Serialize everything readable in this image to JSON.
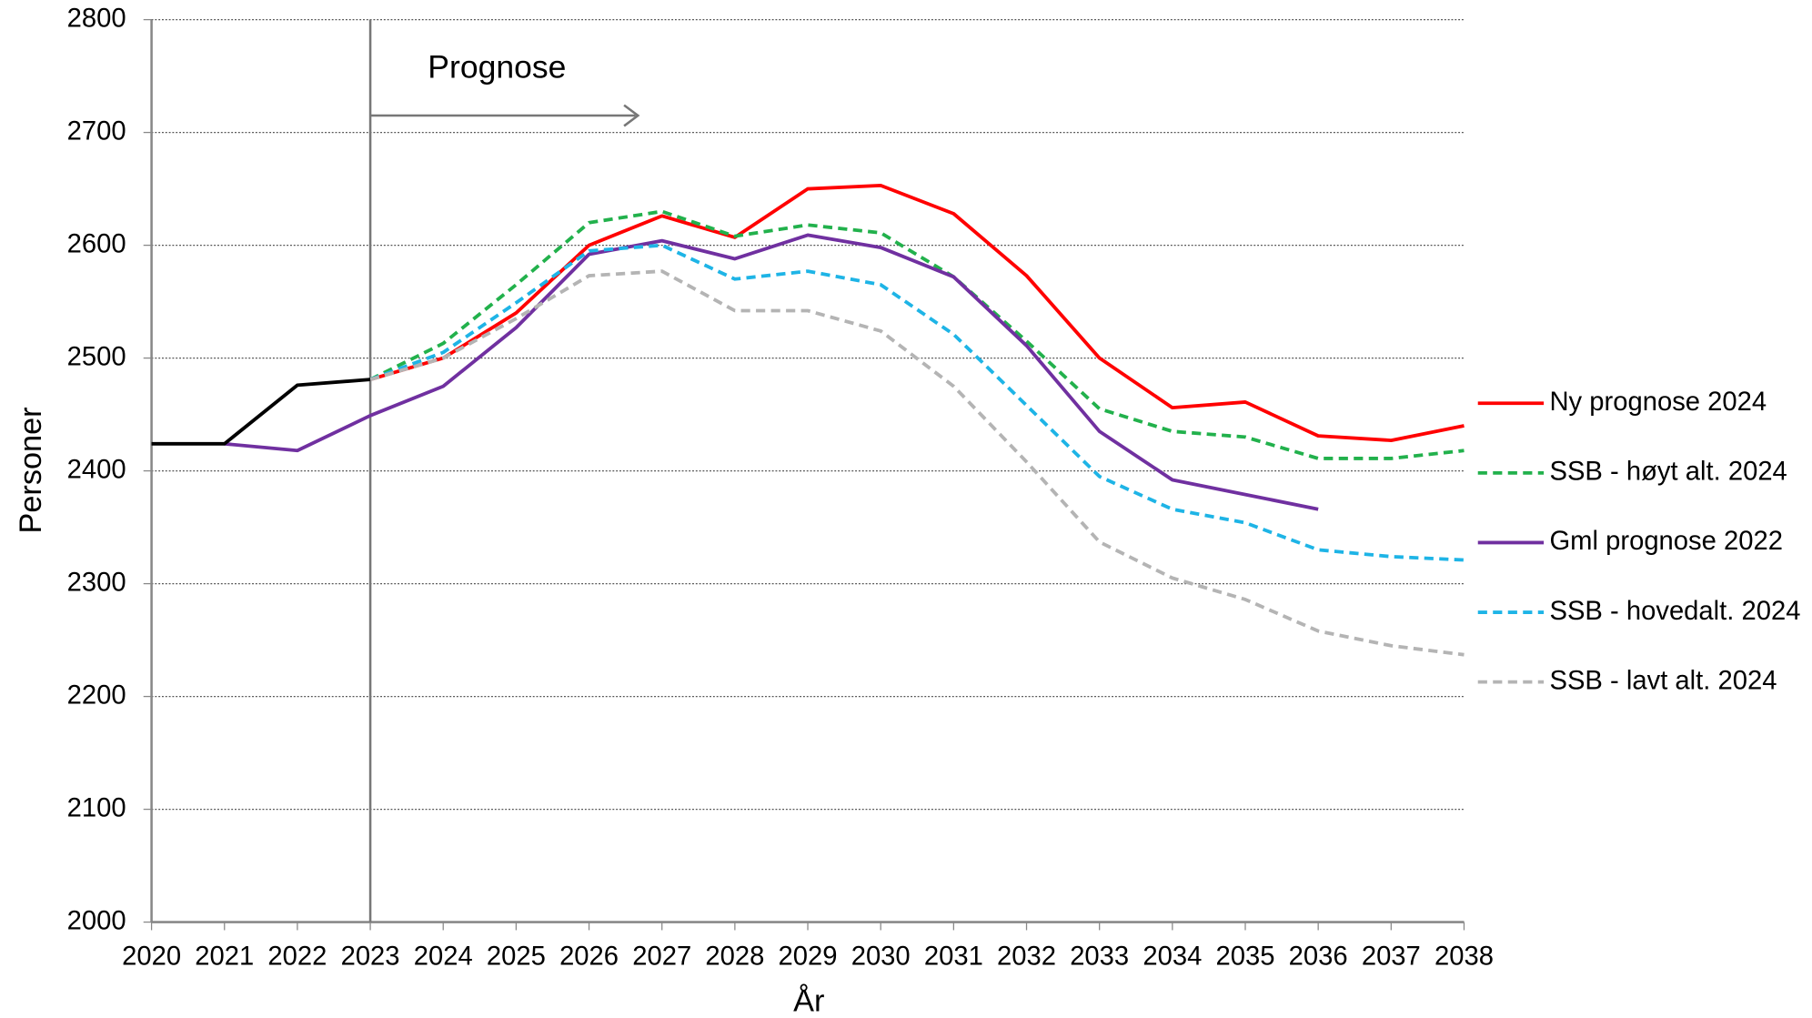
{
  "chart_data": {
    "type": "line",
    "x_label": "År",
    "y_label": "Personer",
    "annotation": "Prognose",
    "vline": 2023,
    "x": [
      2020,
      2021,
      2022,
      2023,
      2024,
      2025,
      2026,
      2027,
      2028,
      2029,
      2030,
      2031,
      2032,
      2033,
      2034,
      2035,
      2036,
      2037,
      2038
    ],
    "xlim": [
      2020,
      2038
    ],
    "xticks": [
      2020,
      2021,
      2022,
      2023,
      2024,
      2025,
      2026,
      2027,
      2028,
      2029,
      2030,
      2031,
      2032,
      2033,
      2034,
      2035,
      2036,
      2037,
      2038
    ],
    "ylim": [
      2000,
      2800
    ],
    "yticks": [
      2000,
      2100,
      2200,
      2300,
      2400,
      2500,
      2600,
      2700,
      2800
    ],
    "grid": true,
    "legend": "right",
    "series": [
      {
        "name": "Ny prognose 2024",
        "color": "#ff0000",
        "dashed": false,
        "values": [
          null,
          null,
          null,
          2481,
          2500,
          2540,
          2600,
          2626,
          2607,
          2650,
          2653,
          2628,
          2573,
          2500,
          2456,
          2461,
          2431,
          2427,
          2440
        ]
      },
      {
        "name": "SSB - høyt alt. 2024",
        "color": "#22b14c",
        "dashed": true,
        "values": [
          null,
          null,
          null,
          2481,
          2513,
          2565,
          2620,
          2630,
          2608,
          2618,
          2611,
          2572,
          2515,
          2455,
          2435,
          2430,
          2411,
          2411,
          2418
        ]
      },
      {
        "name": "Gml prognose 2022",
        "color": "#7030a0",
        "dashed": false,
        "values": [
          null,
          2424,
          2418,
          2449,
          2475,
          2527,
          2592,
          2604,
          2588,
          2609,
          2598,
          2572,
          2511,
          2435,
          2392,
          2379,
          2366,
          null,
          null
        ]
      },
      {
        "name": "SSB - hovedalt. 2024",
        "color": "#1eb4e6",
        "dashed": true,
        "values": [
          null,
          null,
          null,
          2481,
          2505,
          2549,
          2595,
          2600,
          2570,
          2577,
          2565,
          2521,
          2458,
          2395,
          2366,
          2354,
          2330,
          2324,
          2321
        ]
      },
      {
        "name": "SSB - lavt alt. 2024",
        "color": "#b4b4b4",
        "dashed": true,
        "values": [
          null,
          null,
          null,
          2481,
          2500,
          2535,
          2573,
          2577,
          2542,
          2542,
          2524,
          2475,
          2408,
          2337,
          2305,
          2286,
          2258,
          2245,
          2237
        ]
      },
      {
        "color": "#000000",
        "dashed": false,
        "values": [
          2424,
          2424,
          2476,
          2481,
          null,
          null,
          null,
          null,
          null,
          null,
          null,
          null,
          null,
          null,
          null,
          null,
          null,
          null,
          null
        ]
      }
    ]
  }
}
